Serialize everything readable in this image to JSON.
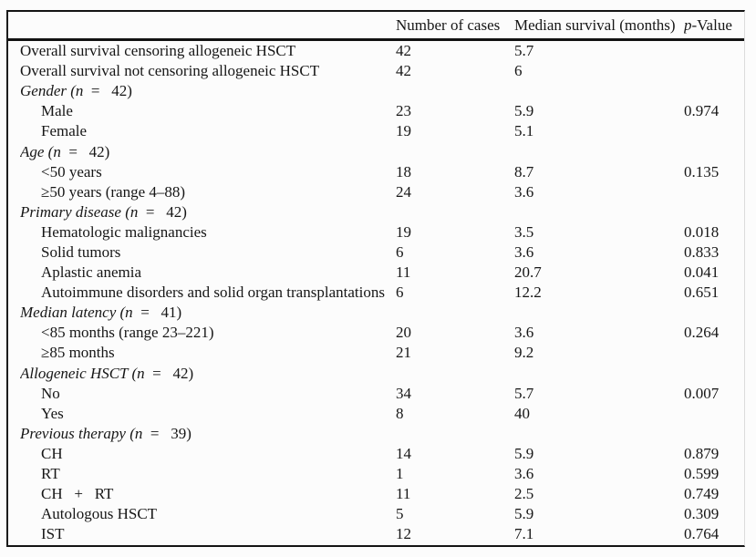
{
  "table": {
    "header": {
      "cases": "Number of cases",
      "median": "Median survival (months)",
      "p_italic": "p",
      "p_rest": "-Value"
    },
    "rows": [
      {
        "style": "plain",
        "label_italic": "",
        "label": "Overall survival censoring allogeneic HSCT",
        "cases": "42",
        "median": "5.7",
        "p": ""
      },
      {
        "style": "plain",
        "label_italic": "",
        "label": "Overall survival not censoring allogeneic HSCT",
        "cases": "42",
        "median": "6",
        "p": ""
      },
      {
        "style": "section",
        "label_italic": "Gender (n",
        "label": "  =   42)",
        "cases": "",
        "median": "",
        "p": ""
      },
      {
        "style": "indent",
        "label_italic": "",
        "label": "Male",
        "cases": "23",
        "median": "5.9",
        "p": "0.974"
      },
      {
        "style": "indent",
        "label_italic": "",
        "label": "Female",
        "cases": "19",
        "median": "5.1",
        "p": ""
      },
      {
        "style": "section",
        "label_italic": "Age (n",
        "label": "  =   42)",
        "cases": "",
        "median": "",
        "p": ""
      },
      {
        "style": "indent",
        "label_italic": "",
        "label": "<50 years",
        "cases": "18",
        "median": "8.7",
        "p": "0.135"
      },
      {
        "style": "indent",
        "label_italic": "",
        "label": "≥50 years (range 4–88)",
        "cases": "24",
        "median": "3.6",
        "p": ""
      },
      {
        "style": "section",
        "label_italic": "Primary disease (n",
        "label": "  =   42)",
        "cases": "",
        "median": "",
        "p": ""
      },
      {
        "style": "indent",
        "label_italic": "",
        "label": "Hematologic malignancies",
        "cases": "19",
        "median": "3.5",
        "p": "0.018"
      },
      {
        "style": "indent",
        "label_italic": "",
        "label": "Solid tumors",
        "cases": "6",
        "median": "3.6",
        "p": "0.833"
      },
      {
        "style": "indent",
        "label_italic": "",
        "label": "Aplastic anemia",
        "cases": "11",
        "median": "20.7",
        "p": "0.041"
      },
      {
        "style": "indent",
        "label_italic": "",
        "label": "Autoimmune disorders and solid organ transplantations",
        "cases": "6",
        "median": "12.2",
        "p": "0.651"
      },
      {
        "style": "section",
        "label_italic": "Median latency (n",
        "label": "  =   41)",
        "cases": "",
        "median": "",
        "p": ""
      },
      {
        "style": "indent",
        "label_italic": "",
        "label": "<85 months (range 23–221)",
        "cases": "20",
        "median": "3.6",
        "p": "0.264"
      },
      {
        "style": "indent",
        "label_italic": "",
        "label": "≥85 months",
        "cases": "21",
        "median": "9.2",
        "p": ""
      },
      {
        "style": "section",
        "label_italic": "Allogeneic HSCT (n",
        "label": "  =   42)",
        "cases": "",
        "median": "",
        "p": ""
      },
      {
        "style": "indent",
        "label_italic": "",
        "label": "No",
        "cases": "34",
        "median": "5.7",
        "p": "0.007"
      },
      {
        "style": "indent",
        "label_italic": "",
        "label": "Yes",
        "cases": "8",
        "median": "40",
        "p": ""
      },
      {
        "style": "section",
        "label_italic": "Previous therapy (n",
        "label": "  =   39)",
        "cases": "",
        "median": "",
        "p": ""
      },
      {
        "style": "indent",
        "label_italic": "",
        "label": "CH",
        "cases": "14",
        "median": "5.9",
        "p": "0.879"
      },
      {
        "style": "indent",
        "label_italic": "",
        "label": "RT",
        "cases": "1",
        "median": "3.6",
        "p": "0.599"
      },
      {
        "style": "indent",
        "label_italic": "",
        "label": "CH   +   RT",
        "cases": "11",
        "median": "2.5",
        "p": "0.749"
      },
      {
        "style": "indent",
        "label_italic": "",
        "label": "Autologous HSCT",
        "cases": "5",
        "median": "5.9",
        "p": "0.309"
      },
      {
        "style": "indent",
        "label_italic": "",
        "label": "IST",
        "cases": "12",
        "median": "7.1",
        "p": "0.764"
      }
    ]
  }
}
